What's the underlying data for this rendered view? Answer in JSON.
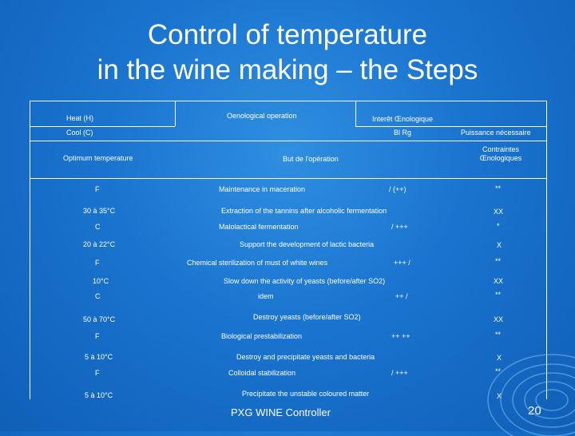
{
  "title": {
    "line1": "Control of temperature",
    "line2": "in the wine making – the Steps"
  },
  "header": {
    "heat": "Heat (H)",
    "cool": "Cool (C)",
    "optimum": "Optimum temperature",
    "oenological_operation": "Oenological operation",
    "interet": "Interêt Œnologique",
    "bl_rg": "Bl   Rg",
    "puissance": "Puissance nécessaire",
    "but": "But de l'opération",
    "contraintes_line1": "Contraintes",
    "contraintes_line2": "Œnologiques"
  },
  "rows": {
    "r1_mode": "F",
    "r1_op": "Maintenance in maceration",
    "r1_interest": "/   (++)",
    "r1_power": "**",
    "r2_temp": "30 à 35°C",
    "r2_goal": "Extraction of the tannins after alcoholic fermentation",
    "r2_constraint": "XX",
    "r3_mode": "C",
    "r3_op": "Malolactical fermentation",
    "r3_interest": "/   +++",
    "r3_power": "*",
    "r4_temp": "20 à 22°C",
    "r4_goal": "Support the development of lactic bacteria",
    "r4_constraint": "X",
    "r5_mode": "F",
    "r5_op": "Chemical sterilization of must of white wines",
    "r5_interest": "+++   /",
    "r5_power": "**",
    "r6_temp": "10°C",
    "r6_goal": "Slow down the activity of yeasts (before/after SO2)",
    "r6_constraint": "XX",
    "r7_mode": "C",
    "r7_op": "idem",
    "r7_interest": "++   /",
    "r7_power": "**",
    "r8_temp": "50 à 70°C",
    "r8_goal": "Destroy yeasts (before/after SO2)",
    "r8_constraint": "XX",
    "r9_mode": "F",
    "r9_op": "Biological prestabilization",
    "r9_interest": "++   ++",
    "r9_power": "**",
    "r10_temp": "5 à 10°C",
    "r10_goal": "Destroy and precipitate yeasts and bacteria",
    "r10_constraint": "X",
    "r11_mode": "F",
    "r11_op": "Colloidal stabilization",
    "r11_interest": "/   +++",
    "r11_power": "**",
    "r12_temp": "5 à 10°C",
    "r12_goal": "Precipitate the unstable coloured matter",
    "r12_constraint": "X"
  },
  "footer": {
    "caption": "PXG WINE Controller",
    "page_number": "20"
  },
  "colors": {
    "background": "#1a74cf",
    "text": "#ffffff"
  }
}
